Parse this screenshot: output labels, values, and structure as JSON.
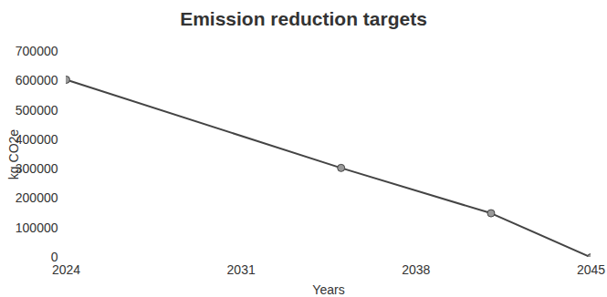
{
  "chart_data": {
    "type": "line",
    "title": "Emission reduction targets",
    "x_label": "Years",
    "y_label": "kg CO2e",
    "x": [
      2024,
      2035,
      2041,
      2045
    ],
    "values": [
      604000,
      304000,
      150000,
      0
    ],
    "color": "#444444",
    "marker": "circle",
    "xlim": [
      2024,
      2045
    ],
    "xticks": [
      2024,
      2031,
      2038,
      2045
    ],
    "ylim": [
      0,
      700000
    ],
    "yticks": [
      0,
      100000,
      200000,
      300000,
      400000,
      500000,
      600000,
      700000
    ],
    "grid": false
  }
}
